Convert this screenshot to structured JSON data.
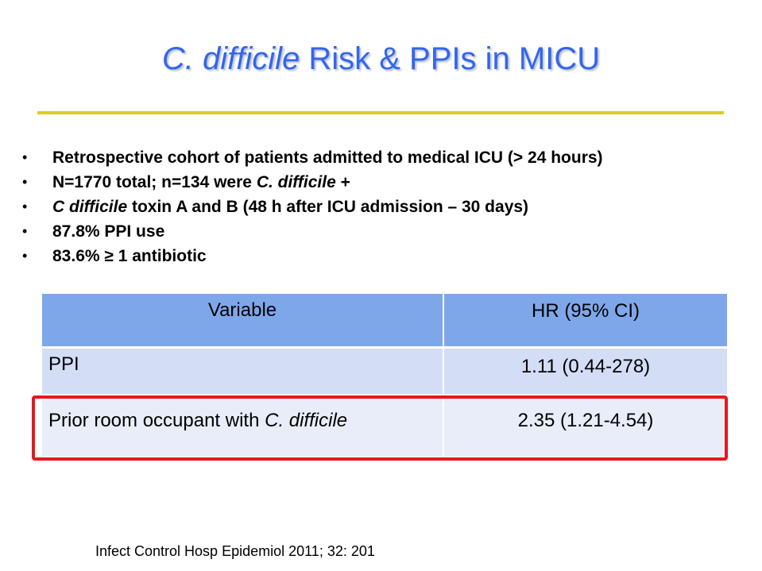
{
  "slide": {
    "title_italic": "C. difficile",
    "title_rest": " Risk & PPIs in MICU",
    "accent_color": "#3366ee",
    "rule_color": "#dccb24",
    "highlight_color": "#e8161e"
  },
  "bullets": [
    {
      "bullet": "•",
      "parts": [
        {
          "text": "Retrospective cohort of patients admitted to medical ICU (> 24 hours)",
          "italic": false
        }
      ]
    },
    {
      "bullet": "•",
      "parts": [
        {
          "text": "N=1770 total; n=134 were ",
          "italic": false
        },
        {
          "text": "C. difficile",
          "italic": true
        },
        {
          "text": " +",
          "italic": false
        }
      ]
    },
    {
      "bullet": "•",
      "parts": [
        {
          "text": "C difficile",
          "italic": true
        },
        {
          "text": " toxin A and B (48 h after ICU admission – 30 days)",
          "italic": false
        }
      ]
    },
    {
      "bullet": "•",
      "parts": [
        {
          "text": "87.8% PPI use",
          "italic": false
        }
      ]
    },
    {
      "bullet": "•",
      "parts": [
        {
          "text": "83.6% ≥ 1 antibiotic",
          "italic": false
        }
      ]
    }
  ],
  "table": {
    "headers": [
      "Variable",
      "HR (95% CI)"
    ],
    "rows": [
      {
        "variable": "PPI",
        "variable_italic": "",
        "hr": "1.11 (0.44-278)"
      },
      {
        "variable": "Prior room occupant with ",
        "variable_italic": "C. difficile",
        "hr": "2.35 (1.21-4.54)"
      }
    ]
  },
  "citation": "Infect Control Hosp Epidemiol 2011; 32: 201"
}
